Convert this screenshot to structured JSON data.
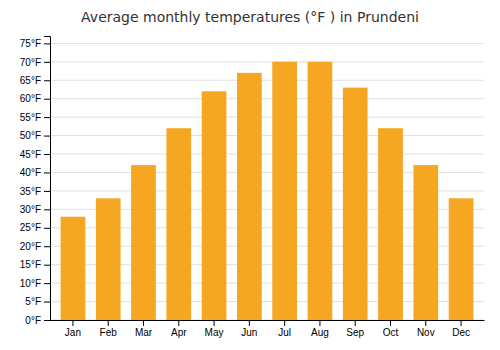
{
  "chart_data": {
    "type": "bar",
    "title": "Average monthly temperatures (°F ) in Prundeni",
    "categories": [
      "Jan",
      "Feb",
      "Mar",
      "Apr",
      "May",
      "Jun",
      "Jul",
      "Aug",
      "Sep",
      "Oct",
      "Nov",
      "Dec"
    ],
    "values": [
      28,
      33,
      42,
      52,
      62,
      67,
      70,
      70,
      63,
      52,
      42,
      33
    ],
    "color": "#F5A623",
    "ylim": [
      0,
      77
    ],
    "yticks": [
      {
        "value": 0,
        "label": "0°F"
      },
      {
        "value": 5,
        "label": "5°F"
      },
      {
        "value": 10,
        "label": "10°F"
      },
      {
        "value": 15,
        "label": "15°F"
      },
      {
        "value": 20,
        "label": "20°F"
      },
      {
        "value": 25,
        "label": "25°F"
      },
      {
        "value": 30,
        "label": "30°F"
      },
      {
        "value": 35,
        "label": "35°F"
      },
      {
        "value": 40,
        "label": "40°F"
      },
      {
        "value": 45,
        "label": "45°F"
      },
      {
        "value": 50,
        "label": "50°F"
      },
      {
        "value": 55,
        "label": "55°F"
      },
      {
        "value": 60,
        "label": "60°F"
      },
      {
        "value": 65,
        "label": "65°F"
      },
      {
        "value": 70,
        "label": "70°F"
      },
      {
        "value": 75,
        "label": "75°F"
      }
    ],
    "grid": true
  }
}
